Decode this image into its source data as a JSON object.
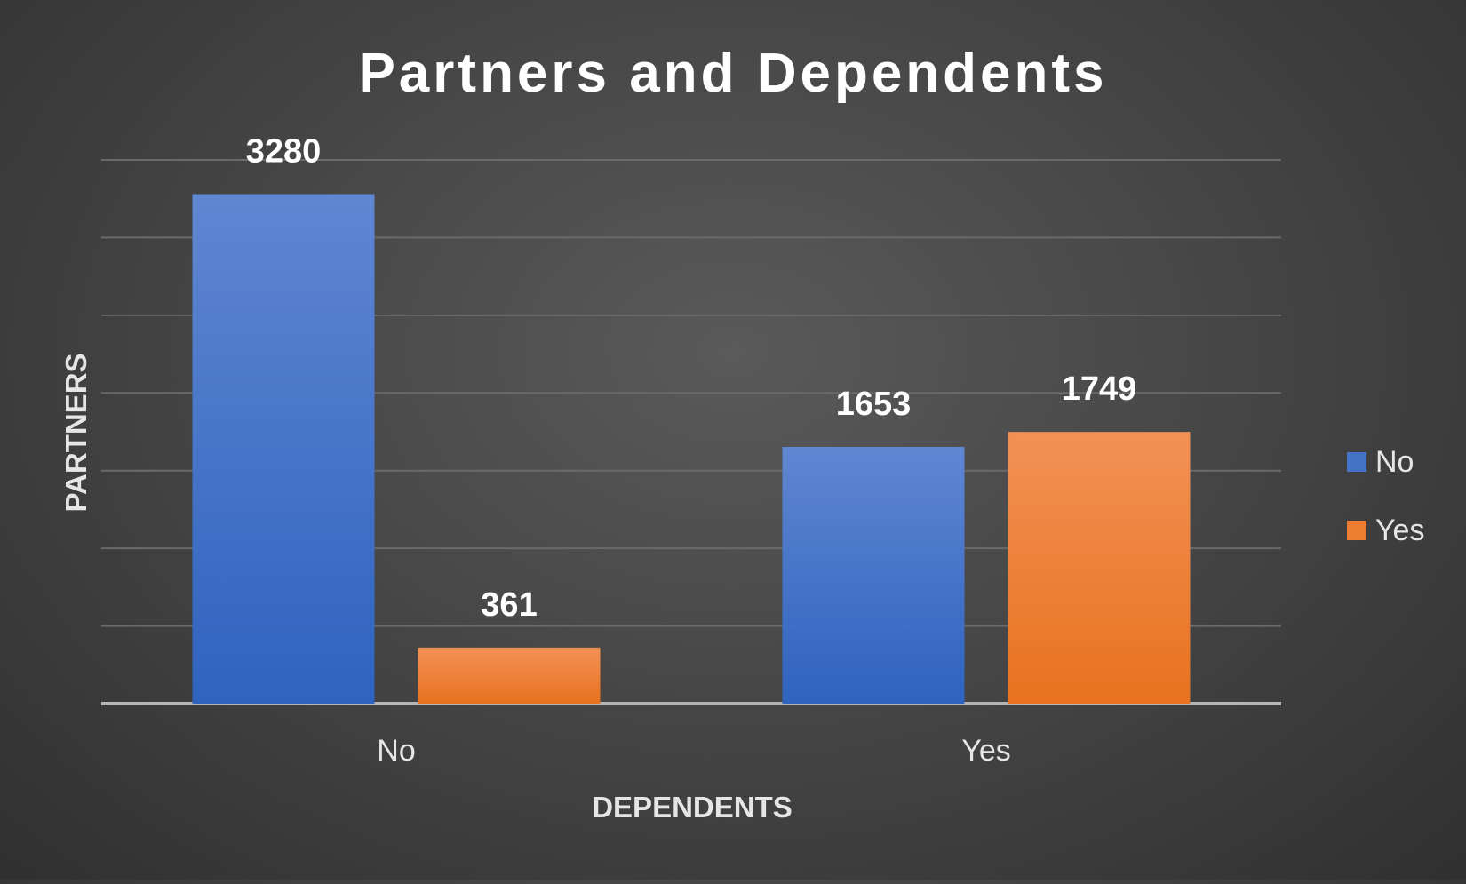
{
  "chart_data": {
    "type": "bar",
    "title": "Partners and Dependents",
    "xlabel": "DEPENDENTS",
    "ylabel": "PARTNERS",
    "categories": [
      "No",
      "Yes"
    ],
    "series": [
      {
        "name": "No",
        "values": [
          3280,
          1653
        ]
      },
      {
        "name": "Yes",
        "values": [
          361,
          1749
        ]
      }
    ],
    "ylim": [
      0,
      3500
    ],
    "grid": true,
    "legend": "right",
    "data_labels": true,
    "colors": {
      "No": "#4472c4",
      "Yes": "#ed7d31",
      "background": "#454545",
      "text": "#ffffff"
    }
  }
}
